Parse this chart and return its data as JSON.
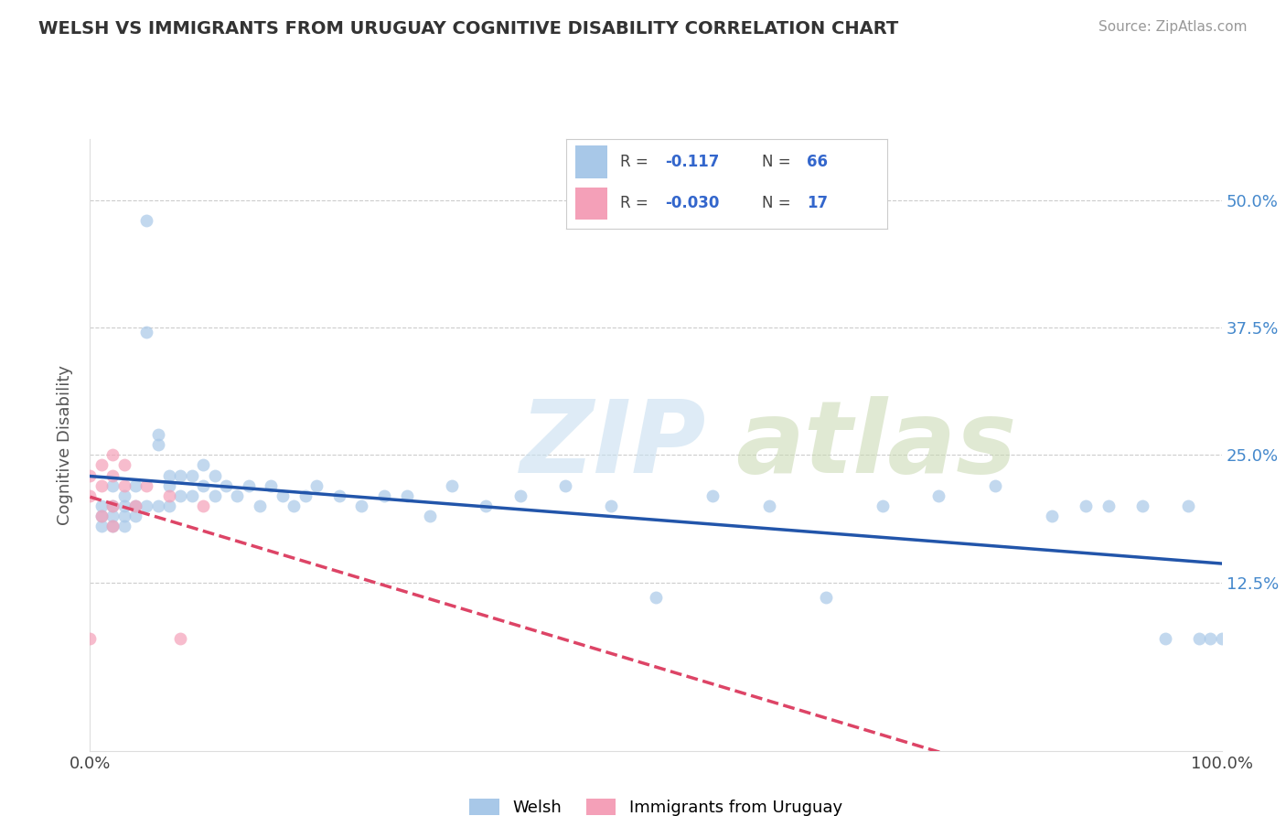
{
  "title": "WELSH VS IMMIGRANTS FROM URUGUAY COGNITIVE DISABILITY CORRELATION CHART",
  "source": "Source: ZipAtlas.com",
  "ylabel": "Cognitive Disability",
  "xlabel": "",
  "xlim": [
    0.0,
    1.0
  ],
  "ylim": [
    -0.04,
    0.56
  ],
  "ytick_vals": [
    0.125,
    0.25,
    0.375,
    0.5
  ],
  "yticklabels": [
    "12.5%",
    "25.0%",
    "37.5%",
    "50.0%"
  ],
  "welsh_r": -0.117,
  "welsh_n": 66,
  "uruguay_r": -0.03,
  "uruguay_n": 17,
  "welsh_color": "#a8c8e8",
  "uruguay_color": "#f4a0b8",
  "welsh_line_color": "#2255aa",
  "uruguay_line_color": "#dd4466",
  "background_color": "#ffffff",
  "grid_color": "#cccccc",
  "welsh_x": [
    0.01,
    0.01,
    0.01,
    0.02,
    0.02,
    0.02,
    0.02,
    0.03,
    0.03,
    0.03,
    0.03,
    0.04,
    0.04,
    0.04,
    0.05,
    0.05,
    0.05,
    0.06,
    0.06,
    0.06,
    0.07,
    0.07,
    0.07,
    0.08,
    0.08,
    0.09,
    0.09,
    0.1,
    0.1,
    0.11,
    0.11,
    0.12,
    0.13,
    0.14,
    0.15,
    0.16,
    0.17,
    0.18,
    0.19,
    0.2,
    0.22,
    0.24,
    0.26,
    0.28,
    0.3,
    0.32,
    0.35,
    0.38,
    0.42,
    0.46,
    0.5,
    0.55,
    0.6,
    0.65,
    0.7,
    0.75,
    0.8,
    0.85,
    0.88,
    0.9,
    0.93,
    0.95,
    0.97,
    0.98,
    0.99,
    1.0
  ],
  "welsh_y": [
    0.2,
    0.19,
    0.18,
    0.22,
    0.2,
    0.19,
    0.18,
    0.21,
    0.2,
    0.19,
    0.18,
    0.22,
    0.2,
    0.19,
    0.48,
    0.37,
    0.2,
    0.27,
    0.26,
    0.2,
    0.23,
    0.22,
    0.2,
    0.23,
    0.21,
    0.23,
    0.21,
    0.24,
    0.22,
    0.23,
    0.21,
    0.22,
    0.21,
    0.22,
    0.2,
    0.22,
    0.21,
    0.2,
    0.21,
    0.22,
    0.21,
    0.2,
    0.21,
    0.21,
    0.19,
    0.22,
    0.2,
    0.21,
    0.22,
    0.2,
    0.11,
    0.21,
    0.2,
    0.11,
    0.2,
    0.21,
    0.22,
    0.19,
    0.2,
    0.2,
    0.2,
    0.07,
    0.2,
    0.07,
    0.07,
    0.07
  ],
  "uruguay_x": [
    0.0,
    0.0,
    0.0,
    0.01,
    0.01,
    0.01,
    0.02,
    0.02,
    0.02,
    0.02,
    0.03,
    0.03,
    0.04,
    0.05,
    0.07,
    0.08,
    0.1
  ],
  "uruguay_y": [
    0.23,
    0.21,
    0.07,
    0.24,
    0.22,
    0.19,
    0.25,
    0.23,
    0.2,
    0.18,
    0.24,
    0.22,
    0.2,
    0.22,
    0.21,
    0.07,
    0.2
  ]
}
